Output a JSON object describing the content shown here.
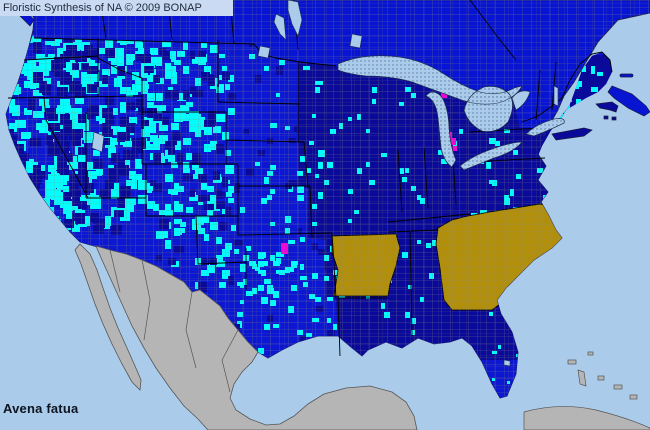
{
  "header": {
    "title": "Floristic Synthesis of NA © 2009 BONAP"
  },
  "map_label": {
    "species": "Avena fatua"
  },
  "palette": {
    "ocean": "#aacbea",
    "canada_blue": "#0714d2",
    "us_state_blue": "#0c17d2",
    "county_navy": "#0a0a9a",
    "county_cyan": "#00ffff",
    "state_gold": "#b28f0a",
    "orange_county": "#c8882b",
    "magenta_county": "#f400d8",
    "outside_gray": "#b5b5b5",
    "lake_blue": "#aacbea",
    "county_line": "#8e8e7c",
    "border_black": "#000000",
    "coast_line": "#1a1a40",
    "titlebar_bg": "#c9daf2",
    "title_text": "#232c3e",
    "species_text": "#0d1420"
  }
}
